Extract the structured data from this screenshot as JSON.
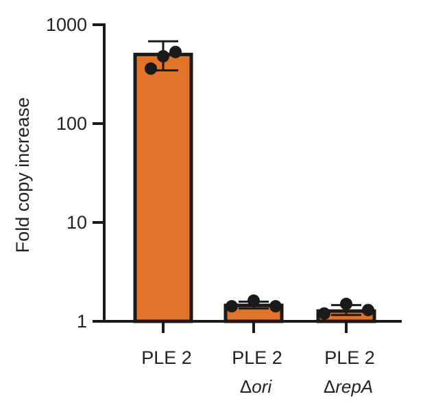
{
  "chart_data": {
    "type": "bar",
    "ylabel": "Fold copy increase",
    "xlabel": "",
    "yscale": "log",
    "ylim": [
      1,
      1000
    ],
    "yticks": [
      1,
      10,
      100,
      1000
    ],
    "ytick_labels": [
      "1",
      "10",
      "100",
      "1000"
    ],
    "categories": [
      {
        "main": "PLE 2",
        "delta": "",
        "sub": ""
      },
      {
        "main": "PLE 2",
        "delta": "Δ",
        "sub": "ori"
      },
      {
        "main": "PLE 2",
        "delta": "Δ",
        "sub": "repA"
      }
    ],
    "values": [
      500,
      1.45,
      1.27
    ],
    "error_low": [
      345,
      1.35,
      1.16
    ],
    "error_high": [
      680,
      1.58,
      1.46
    ],
    "points": [
      [
        360,
        480,
        530
      ],
      [
        1.42,
        1.62,
        1.42
      ],
      [
        1.2,
        1.5,
        1.3
      ]
    ],
    "colors": {
      "bar_fill": "#E07328",
      "bar_stroke": "#1a1a1a",
      "axis": "#1a1a1a",
      "point": "#1a1a1a"
    }
  }
}
